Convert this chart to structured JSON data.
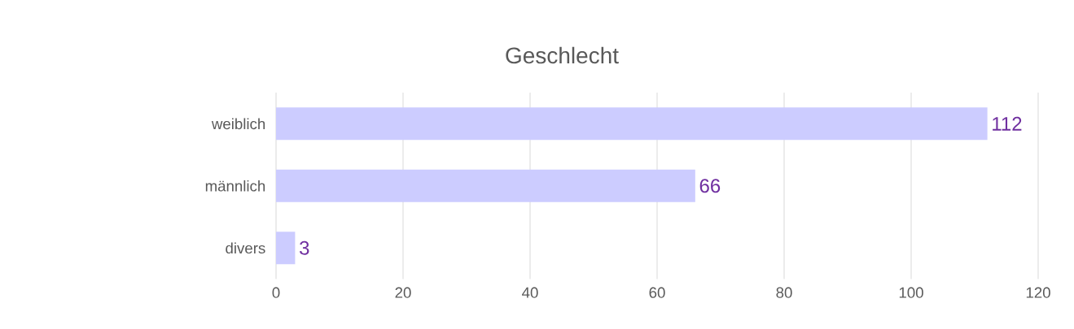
{
  "chart_data": {
    "type": "bar",
    "orientation": "horizontal",
    "title": "Geschlecht",
    "categories": [
      "weiblich",
      "männlich",
      "divers"
    ],
    "values": [
      112,
      66,
      3
    ],
    "color": "#ccccff",
    "xlim": [
      0,
      120
    ],
    "xticks": [
      0,
      20,
      40,
      60,
      80,
      100,
      120
    ],
    "grid": "x",
    "data_labels": true
  }
}
